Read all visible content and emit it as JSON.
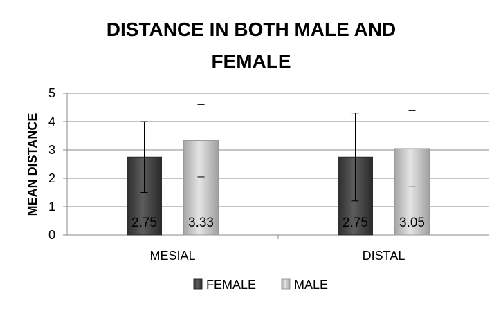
{
  "chart_data": {
    "type": "bar",
    "title_lines": [
      "DISTANCE IN BOTH MALE AND",
      "FEMALE"
    ],
    "ylabel": "MEAN DISTANCE",
    "xlabel": "",
    "ylim": [
      0,
      5
    ],
    "yticks": [
      "0",
      "1",
      "2",
      "3",
      "4",
      "5"
    ],
    "categories": [
      "MESIAL",
      "DISTAL"
    ],
    "series": [
      {
        "name": "FEMALE",
        "values": [
          2.75,
          2.75
        ],
        "labels": [
          "2.75",
          "2.75"
        ],
        "err_low": [
          1.5,
          1.2
        ],
        "err_high": [
          4.0,
          4.3
        ],
        "color": "#444444"
      },
      {
        "name": "MALE",
        "values": [
          3.33,
          3.05
        ],
        "labels": [
          "3.33",
          "3.05"
        ],
        "err_low": [
          2.05,
          1.7
        ],
        "err_high": [
          4.6,
          4.4
        ],
        "color": "#c4c4c4"
      }
    ],
    "grid": true,
    "legend_position": "bottom"
  }
}
